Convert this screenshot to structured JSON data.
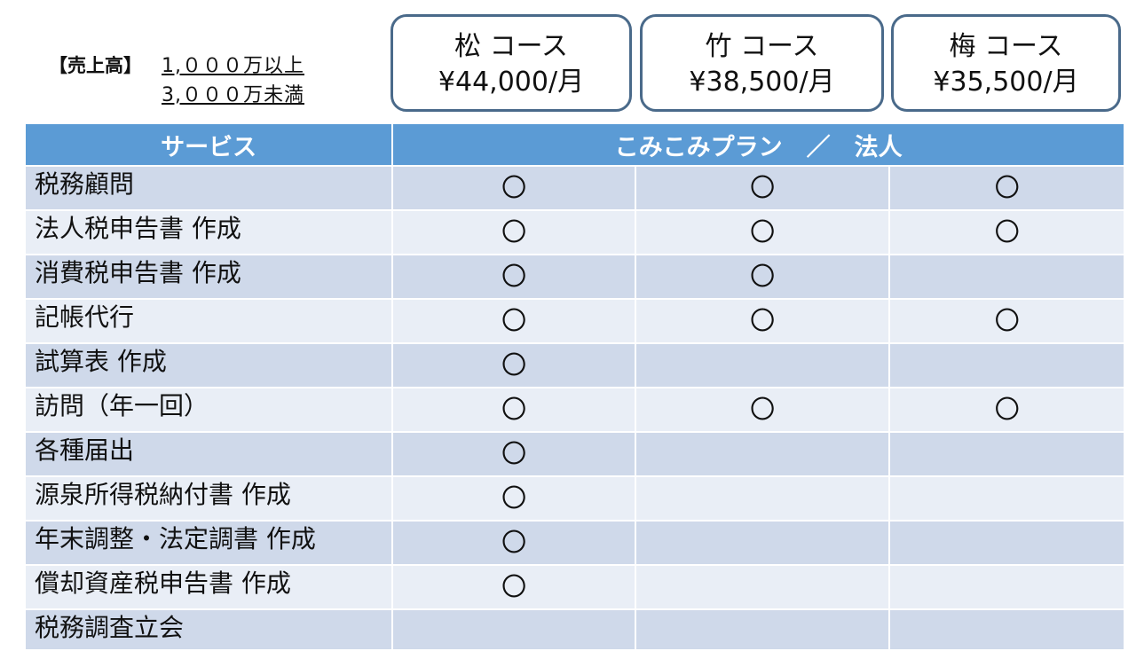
{
  "sales": {
    "label": "【売上高】",
    "line1": "1,０００万以上",
    "line2": "3,０００万未満"
  },
  "courses": [
    {
      "name": "松 コース",
      "price": "¥44,000/月"
    },
    {
      "name": "竹 コース",
      "price": "¥38,500/月"
    },
    {
      "name": "梅 コース",
      "price": "¥35,500/月"
    }
  ],
  "table": {
    "header_service": "サービス",
    "header_plan": "こみこみプラン　／　法人",
    "mark": "〇",
    "rows": [
      {
        "service": "税務顧問",
        "marks": [
          true,
          true,
          true
        ]
      },
      {
        "service": "法人税申告書 作成",
        "marks": [
          true,
          true,
          true
        ]
      },
      {
        "service": "消費税申告書 作成",
        "marks": [
          true,
          true,
          false
        ]
      },
      {
        "service": "記帳代行",
        "marks": [
          true,
          true,
          true
        ]
      },
      {
        "service": "試算表 作成",
        "marks": [
          true,
          false,
          false
        ]
      },
      {
        "service": "訪問（年一回）",
        "marks": [
          true,
          true,
          true
        ]
      },
      {
        "service": "各種届出",
        "marks": [
          true,
          false,
          false
        ]
      },
      {
        "service": "源泉所得税納付書 作成",
        "marks": [
          true,
          false,
          false
        ]
      },
      {
        "service": "年末調整・法定調書 作成",
        "marks": [
          true,
          false,
          false
        ]
      },
      {
        "service": "償却資産税申告書 作成",
        "marks": [
          true,
          false,
          false
        ]
      },
      {
        "service": "税務調査立会",
        "marks": [
          false,
          false,
          false
        ]
      }
    ]
  },
  "colors": {
    "header": "#5b9bd5",
    "row_dark": "#cfd9ea",
    "row_light": "#e9eef6",
    "course_border": "#4a6a8a"
  }
}
